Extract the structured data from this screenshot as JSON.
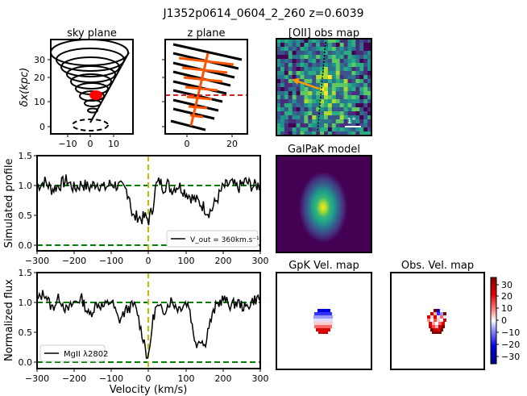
{
  "figure": {
    "title": "J1352p0614_0604_2_260 z=0.6039"
  },
  "panels": {
    "sky": {
      "title": "sky plane",
      "ylabel": "δx(kpc)",
      "xticks": [
        "−10",
        "0",
        "10"
      ],
      "yticks": [
        "0",
        "10",
        "20",
        "30"
      ]
    },
    "zplane": {
      "title": "z plane",
      "xticks": [
        "0",
        "20"
      ]
    },
    "oii": {
      "title": "[OII] obs map",
      "scale_label": "1\""
    },
    "galpak": {
      "title": "GalPaK model"
    },
    "gpk_vel": {
      "title": "GpK Vel. map"
    },
    "obs_vel": {
      "title": "Obs. Vel. map"
    },
    "colorbar": {
      "ticks": [
        "30",
        "20",
        "10",
        "0",
        "−10",
        "−20",
        "−30"
      ]
    },
    "sim": {
      "ylabel": "Simulated profile",
      "yticks": [
        "0.0",
        "0.5",
        "1.0",
        "1.5"
      ],
      "legend": "V_out = 360km.s⁻¹"
    },
    "norm": {
      "ylabel": "Normalized flux",
      "yticks": [
        "0.0",
        "0.5",
        "1.0",
        "1.5"
      ],
      "legend": "MgII λ2802"
    },
    "xaxis": {
      "xlabel": "Velocity (km/s)",
      "xticks": [
        "−300",
        "−200",
        "−100",
        "0",
        "100",
        "200",
        "300"
      ]
    }
  },
  "colors": {
    "continuum": "#008000",
    "zero_line": "#bfbf00",
    "cone_marker": "#ff0000",
    "zplane_bars": "#ff5500",
    "zplane_cut": "#e02020"
  },
  "chart_data": [
    {
      "type": "line",
      "panel": "Simulated profile",
      "xlim": [
        -300,
        300
      ],
      "ylim": [
        -0.05,
        1.5
      ],
      "reference_lines": {
        "continuum": 1.0,
        "zero": 0.0,
        "systemic_velocity": 0
      },
      "series": [
        {
          "name": "V_out = 360km.s⁻¹",
          "x": [
            -300,
            -280,
            -260,
            -240,
            -220,
            -200,
            -180,
            -160,
            -140,
            -120,
            -100,
            -80,
            -60,
            -50,
            -45,
            -40,
            -30,
            -20,
            -10,
            0,
            5,
            10,
            15,
            20,
            30,
            40,
            50,
            60,
            80,
            100,
            120,
            140,
            160,
            170,
            180,
            200,
            220,
            240,
            260,
            280,
            300
          ],
          "y": [
            1.0,
            1.08,
            0.95,
            1.02,
            1.1,
            0.96,
            1.04,
            0.98,
            1.06,
            0.97,
            1.05,
            1.0,
            0.94,
            0.82,
            0.55,
            0.48,
            0.52,
            0.47,
            0.5,
            0.45,
            0.55,
            0.6,
            0.85,
            1.02,
            1.08,
            0.98,
            1.05,
            0.95,
            1.02,
            0.9,
            0.8,
            0.72,
            0.58,
            0.62,
            0.75,
            0.98,
            1.05,
            0.97,
            1.08,
            1.0,
            1.03
          ]
        }
      ]
    },
    {
      "type": "line",
      "panel": "Normalized flux",
      "xlim": [
        -300,
        300
      ],
      "ylim": [
        -0.05,
        1.5
      ],
      "reference_lines": {
        "continuum": 1.0,
        "zero": 0.0,
        "systemic_velocity": 0
      },
      "series": [
        {
          "name": "MgII λ2802",
          "x": [
            -300,
            -280,
            -260,
            -240,
            -220,
            -200,
            -180,
            -160,
            -140,
            -120,
            -100,
            -80,
            -60,
            -40,
            -30,
            -20,
            -10,
            -5,
            0,
            5,
            10,
            20,
            40,
            60,
            80,
            100,
            110,
            120,
            130,
            140,
            150,
            160,
            180,
            200,
            220,
            240,
            260,
            280,
            300
          ],
          "y": [
            1.05,
            1.18,
            0.92,
            1.1,
            0.88,
            1.02,
            1.08,
            0.8,
            1.0,
            0.95,
            1.05,
            0.72,
            0.9,
            0.98,
            0.85,
            0.55,
            0.35,
            0.15,
            0.12,
            0.4,
            0.7,
            0.95,
            0.88,
            1.05,
            0.92,
            1.02,
            0.95,
            0.5,
            0.35,
            0.45,
            0.3,
            0.6,
            0.95,
            1.08,
            0.97,
            1.02,
            0.92,
            1.05,
            1.1
          ]
        }
      ]
    }
  ]
}
